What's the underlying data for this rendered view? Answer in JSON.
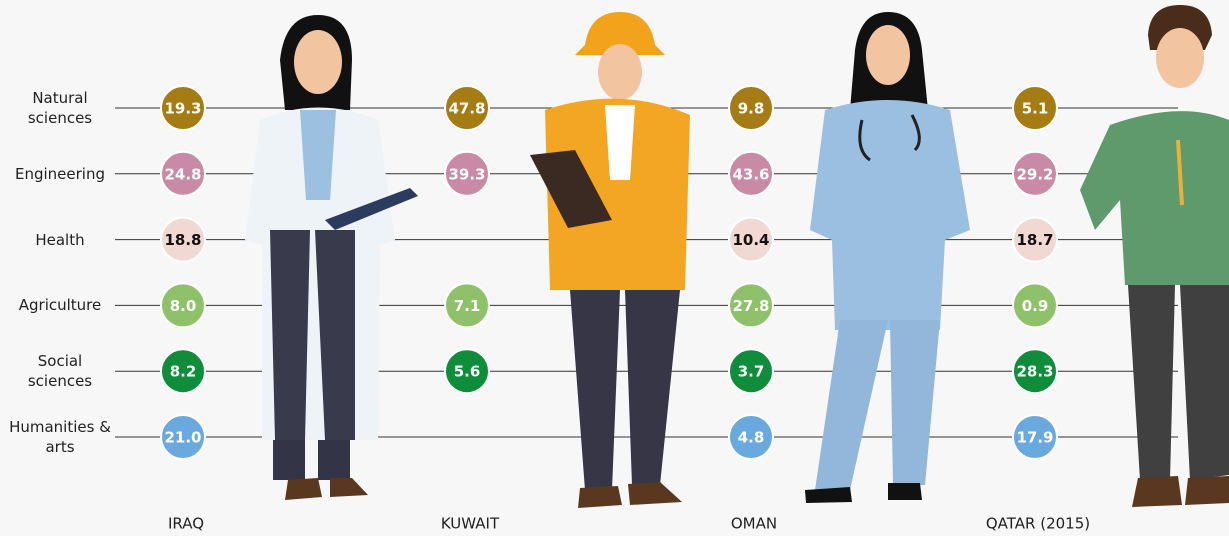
{
  "chart_data": {
    "type": "dot-table",
    "categories": [
      "Natural sciences",
      "Engineering",
      "Health",
      "Agriculture",
      "Social sciences",
      "Humanities & arts"
    ],
    "colors": [
      "#a57c14",
      "#c98aa6",
      "#f2d8d3",
      "#8fc16b",
      "#108d3b",
      "#6aa9dd"
    ],
    "text_colors": [
      "#ffffff",
      "#ffffff",
      "#111111",
      "#ffffff",
      "#ffffff",
      "#ffffff"
    ],
    "series": [
      {
        "name": "IRAQ",
        "values": [
          19.3,
          24.8,
          18.8,
          8.0,
          8.2,
          21.0
        ],
        "value_labels": [
          "19.3",
          "24.8",
          "18.8",
          "8.0",
          "8.2",
          "21.0"
        ]
      },
      {
        "name": "KUWAIT",
        "values": [
          47.8,
          39.3,
          null,
          7.1,
          5.6,
          null
        ],
        "value_labels": [
          "47.8",
          "39.3",
          null,
          "7.1",
          "5.6",
          null
        ]
      },
      {
        "name": "OMAN",
        "values": [
          9.8,
          43.6,
          10.4,
          27.8,
          3.7,
          4.8
        ],
        "value_labels": [
          "9.8",
          "43.6",
          "10.4",
          "27.8",
          "3.7",
          "4.8"
        ]
      },
      {
        "name": "QATAR (2015)",
        "values": [
          5.1,
          29.2,
          18.7,
          0.9,
          28.3,
          17.9
        ],
        "value_labels": [
          "5.1",
          "29.2",
          "18.7",
          "0.9",
          "28.3",
          "17.9"
        ]
      }
    ]
  }
}
